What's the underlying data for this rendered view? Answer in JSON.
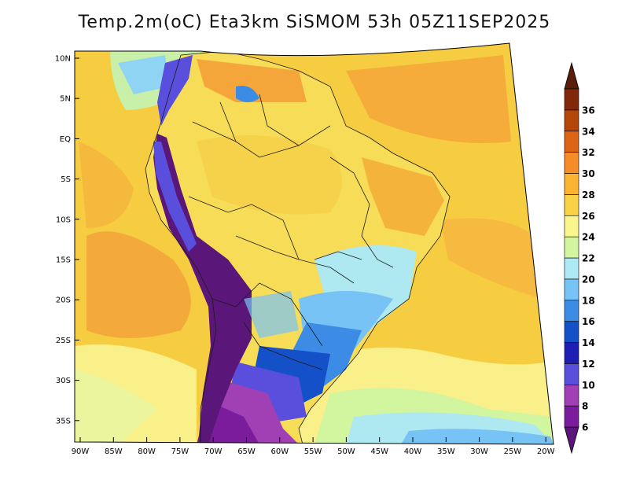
{
  "title": "Temp.2m(oC) Eta3km SiSMOM 53h 05Z11SEP2025",
  "map": {
    "lat_labels": [
      "10N",
      "5N",
      "EQ",
      "5S",
      "10S",
      "15S",
      "20S",
      "25S",
      "30S",
      "35S"
    ],
    "lon_labels": [
      "90W",
      "85W",
      "80W",
      "75W",
      "70W",
      "65W",
      "60W",
      "55W",
      "50W",
      "45W",
      "40W",
      "35W",
      "30W",
      "25W",
      "20W"
    ]
  },
  "colorbar": {
    "labels": [
      "6",
      "8",
      "10",
      "12",
      "14",
      "16",
      "18",
      "20",
      "22",
      "24",
      "26",
      "28",
      "30",
      "32",
      "34",
      "36"
    ],
    "colors": [
      "#7a1c9c",
      "#a040b4",
      "#5a4fdc",
      "#1e1eb4",
      "#1450c8",
      "#3c8ce6",
      "#78c3f5",
      "#aeeaf5",
      "#d2f5a0",
      "#faf58c",
      "#fad246",
      "#fab432",
      "#f58c28",
      "#dc6414",
      "#b4460a",
      "#82280a"
    ],
    "below_color": "#5a1678",
    "above_color": "#5a1e0a"
  }
}
